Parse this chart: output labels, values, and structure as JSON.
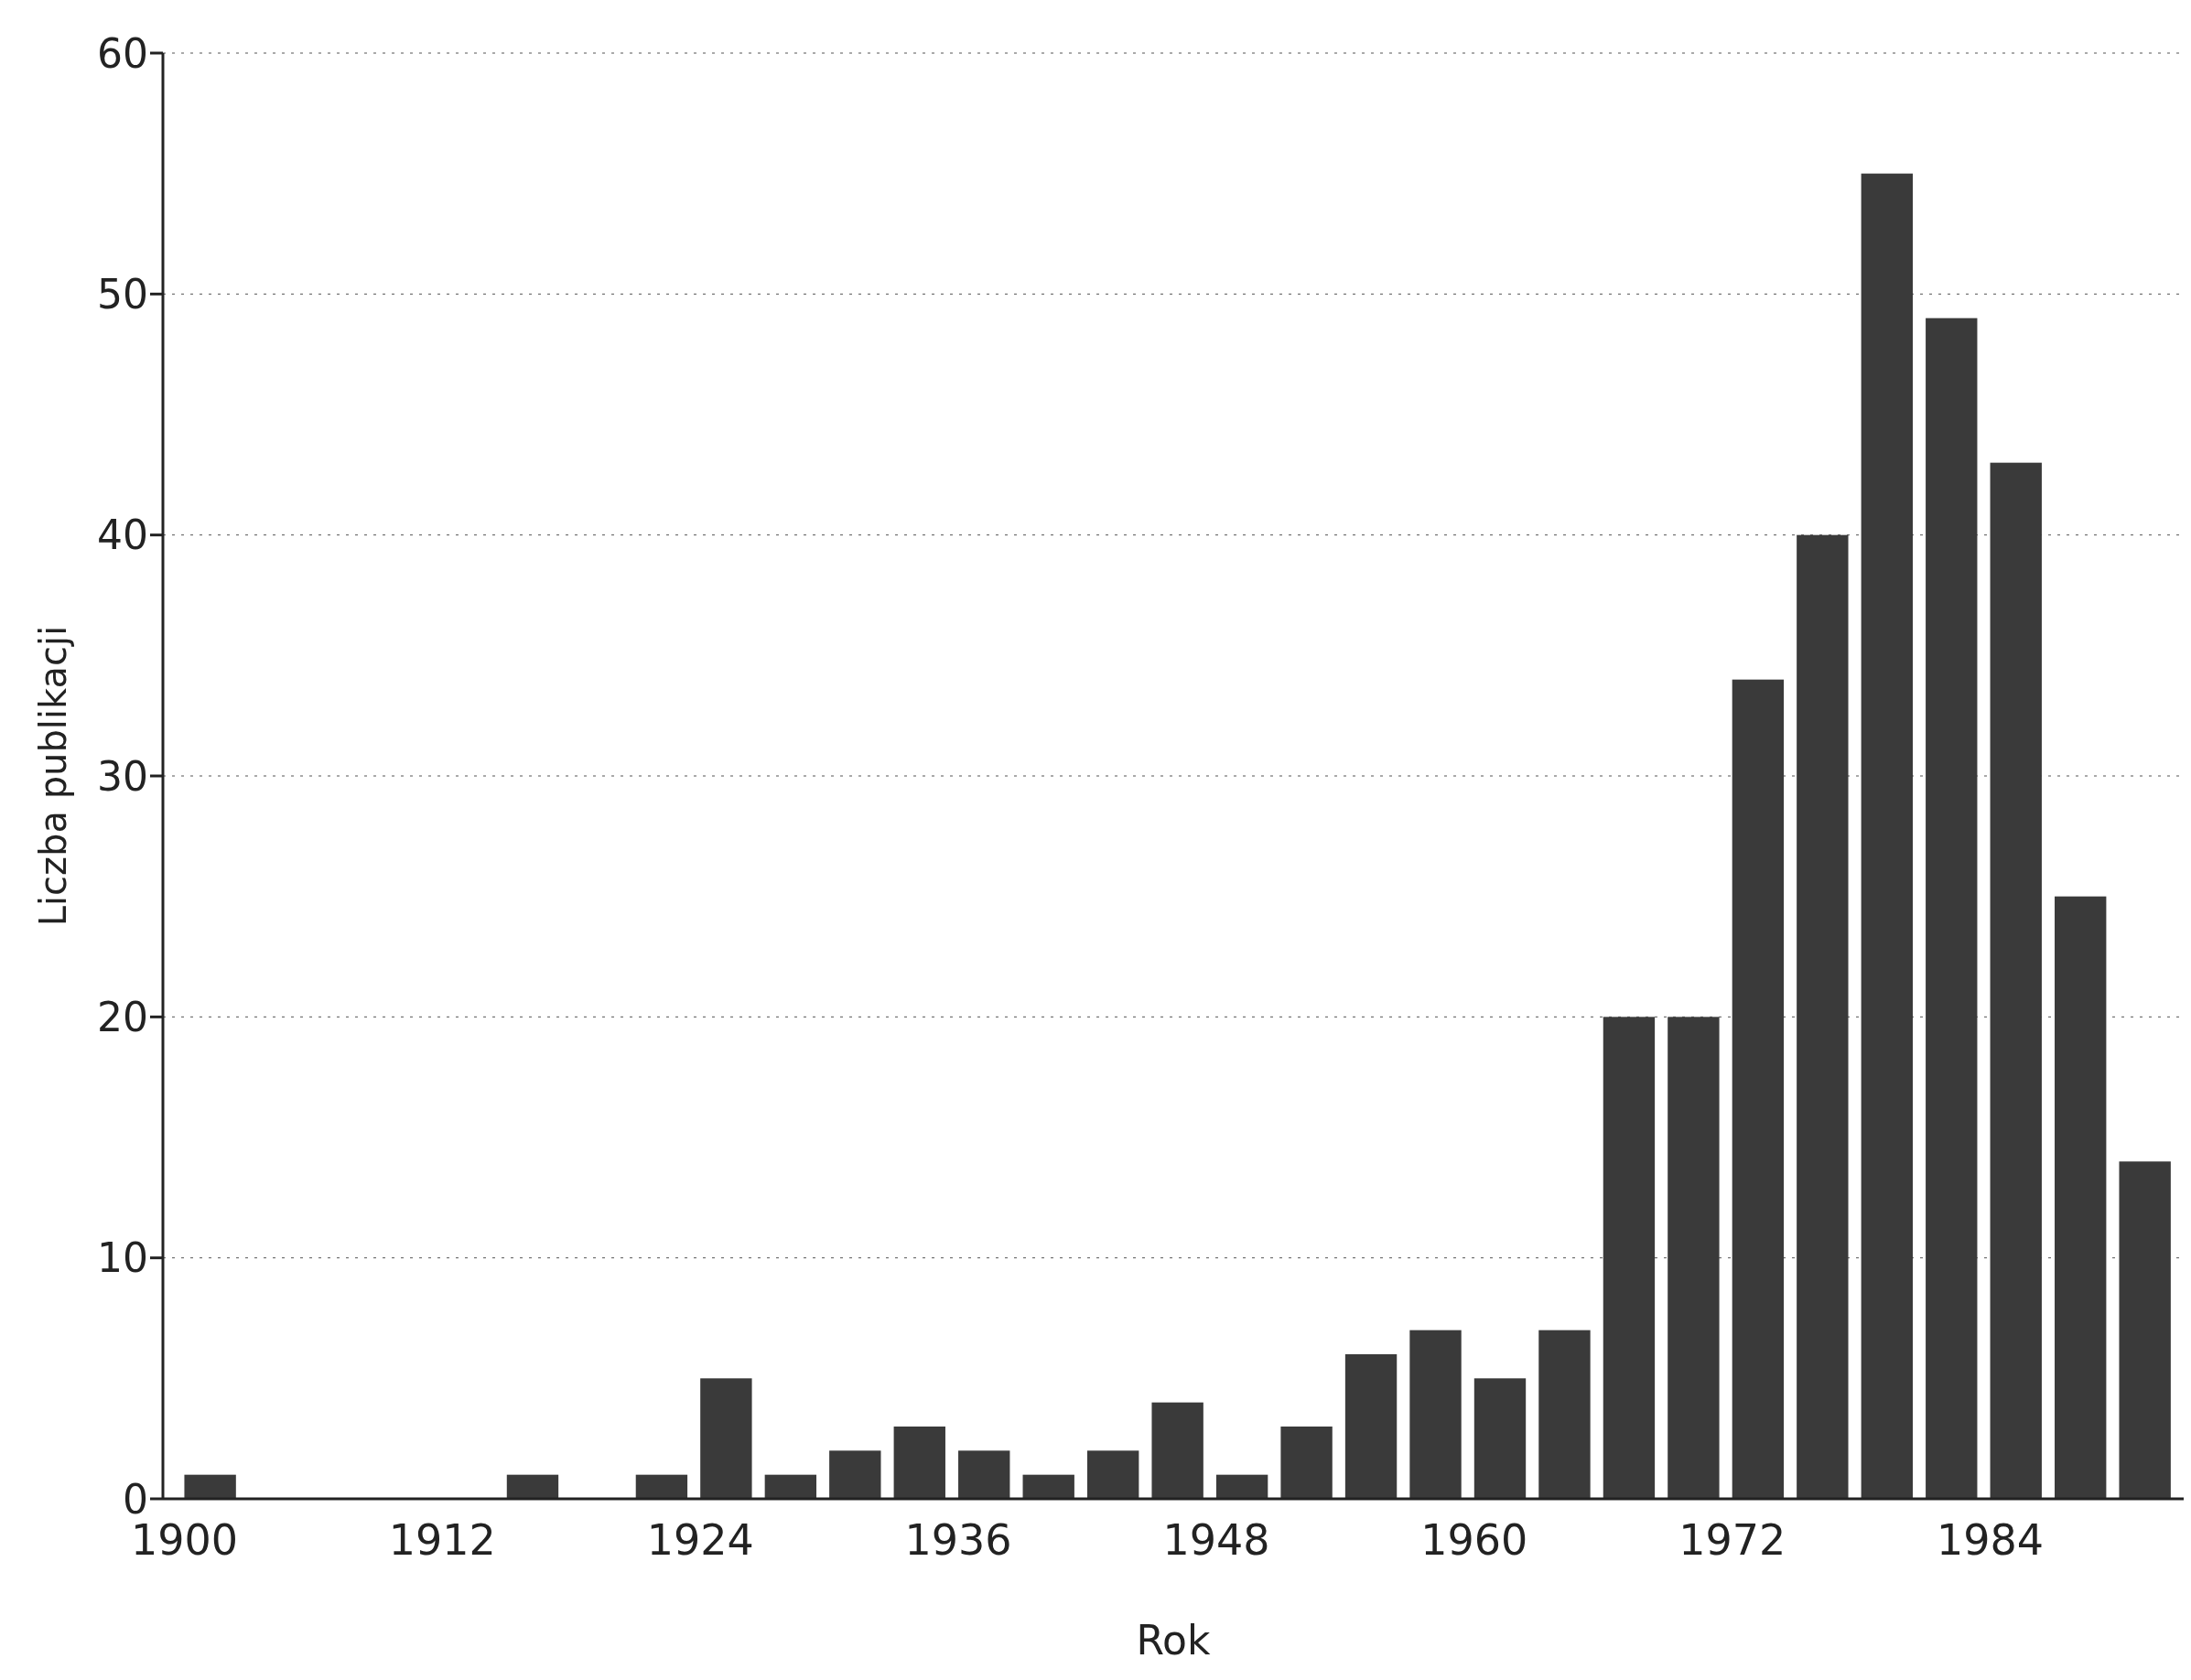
{
  "chart_data": {
    "type": "histogram",
    "xlabel": "Rok",
    "ylabel": "Liczba publikacji",
    "bins": [
      1900,
      1903,
      1906,
      1909,
      1912,
      1915,
      1918,
      1921,
      1924,
      1927,
      1930,
      1933,
      1936,
      1939,
      1942,
      1945,
      1948,
      1951,
      1954,
      1957,
      1960,
      1963,
      1966,
      1969,
      1972,
      1975,
      1978,
      1981,
      1984,
      1987,
      1990,
      1993
    ],
    "values": [
      1,
      0,
      0,
      0,
      0,
      1,
      0,
      1,
      5,
      1,
      2,
      3,
      2,
      1,
      2,
      4,
      1,
      3,
      6,
      7,
      5,
      7,
      20,
      20,
      34,
      40,
      55,
      49,
      43,
      25,
      14
    ],
    "color": "#3a3a3a",
    "xlim": [
      1899,
      1993
    ],
    "xticks": [
      1900,
      1912,
      1924,
      1936,
      1948,
      1960,
      1972,
      1984
    ],
    "ylim": [
      0,
      60
    ],
    "yticks": [
      0,
      10,
      20,
      30,
      40,
      50,
      60
    ],
    "grid": "y"
  }
}
